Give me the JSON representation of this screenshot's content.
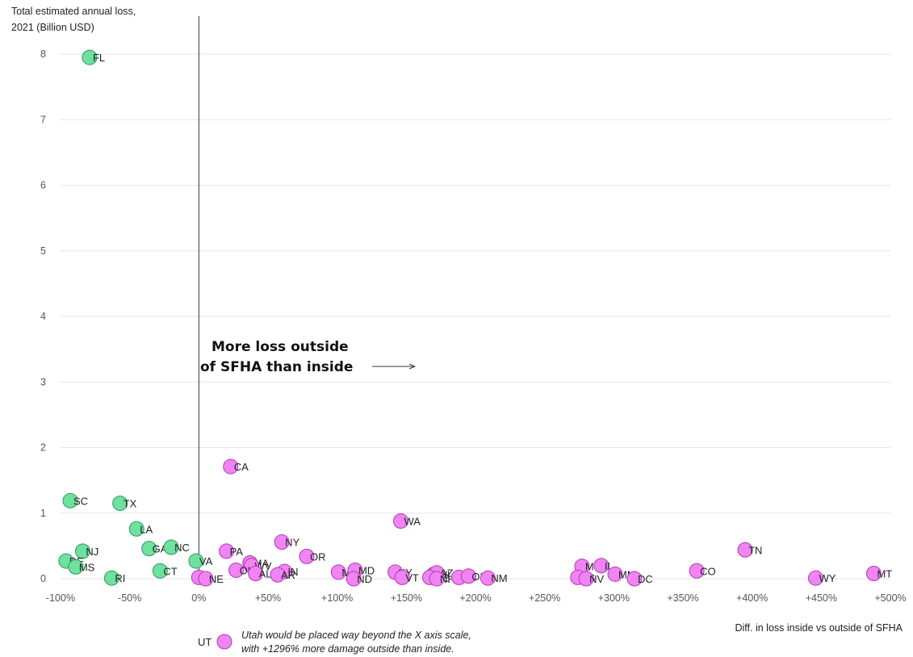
{
  "chart_data": {
    "type": "scatter",
    "title": "",
    "ylabel_lines": [
      "Total estimated annual loss,",
      "2021 (Billion USD)"
    ],
    "xlabel": "Diff. in loss inside vs outside of SFHA",
    "xlim": [
      -100,
      500
    ],
    "ylim": [
      0,
      8
    ],
    "x_ticks": [
      -100,
      -50,
      0,
      50,
      100,
      150,
      200,
      250,
      300,
      350,
      400,
      450,
      500
    ],
    "x_tick_labels": [
      "-100%",
      "-50%",
      "0%",
      "+50%",
      "+100%",
      "+150%",
      "+200%",
      "+250%",
      "+300%",
      "+350%",
      "+400%",
      "+450%",
      "+500%"
    ],
    "y_ticks": [
      0,
      1,
      2,
      3,
      4,
      5,
      6,
      7,
      8
    ],
    "y_tick_labels": [
      "0",
      "1",
      "2",
      "3",
      "4",
      "5",
      "6",
      "7",
      "8"
    ],
    "grid": true,
    "colors": {
      "negative": "#6ee0a0",
      "negative_stroke": "#2e9a5c",
      "positive": "#ef84f2",
      "positive_stroke": "#b03cb8"
    },
    "annotation_lines": [
      "More loss outside",
      "of SFHA than inside"
    ],
    "points": [
      {
        "label": "FL",
        "x": -79,
        "y": 7.95
      },
      {
        "label": "SC",
        "x": -93,
        "y": 1.19
      },
      {
        "label": "TX",
        "x": -57,
        "y": 1.15
      },
      {
        "label": "LA",
        "x": -45,
        "y": 0.76
      },
      {
        "label": "NJ",
        "x": -84,
        "y": 0.42
      },
      {
        "label": "DE",
        "x": -96,
        "y": 0.27
      },
      {
        "label": "MS",
        "x": -89,
        "y": 0.18
      },
      {
        "label": "RI",
        "x": -63,
        "y": 0.01
      },
      {
        "label": "GA",
        "x": -36,
        "y": 0.46
      },
      {
        "label": "NC",
        "x": -20,
        "y": 0.48
      },
      {
        "label": "CT",
        "x": -28,
        "y": 0.12
      },
      {
        "label": "VA",
        "x": -2,
        "y": 0.27
      },
      {
        "label": "IA",
        "x": 0,
        "y": 0.02
      },
      {
        "label": "NE",
        "x": 5,
        "y": 0.0
      },
      {
        "label": "CA",
        "x": 23,
        "y": 1.71
      },
      {
        "label": "PA",
        "x": 20,
        "y": 0.42
      },
      {
        "label": "MA",
        "x": 37,
        "y": 0.24
      },
      {
        "label": "WV",
        "x": 38,
        "y": 0.2
      },
      {
        "label": "OH",
        "x": 27,
        "y": 0.13
      },
      {
        "label": "AL",
        "x": 41,
        "y": 0.08
      },
      {
        "label": "NY",
        "x": 60,
        "y": 0.56
      },
      {
        "label": "OR",
        "x": 78,
        "y": 0.34
      },
      {
        "label": "IN",
        "x": 62,
        "y": 0.11
      },
      {
        "label": "AR",
        "x": 57,
        "y": 0.06
      },
      {
        "label": "MO",
        "x": 101,
        "y": 0.1
      },
      {
        "label": "MD",
        "x": 113,
        "y": 0.13
      },
      {
        "label": "ND",
        "x": 112,
        "y": 0.0
      },
      {
        "label": "KY",
        "x": 142,
        "y": 0.1
      },
      {
        "label": "VT",
        "x": 147,
        "y": 0.02
      },
      {
        "label": "WA",
        "x": 146,
        "y": 0.88
      },
      {
        "label": "WI",
        "x": 170,
        "y": 0.07
      },
      {
        "label": "AZ",
        "x": 172,
        "y": 0.09
      },
      {
        "label": "ME",
        "x": 167,
        "y": 0.02
      },
      {
        "label": "NH",
        "x": 172,
        "y": 0.0
      },
      {
        "label": "SD",
        "x": 188,
        "y": 0.02
      },
      {
        "label": "OK",
        "x": 195,
        "y": 0.04
      },
      {
        "label": "NM",
        "x": 209,
        "y": 0.01
      },
      {
        "label": "MI",
        "x": 277,
        "y": 0.19
      },
      {
        "label": "IL",
        "x": 291,
        "y": 0.2
      },
      {
        "label": "KS",
        "x": 274,
        "y": 0.02
      },
      {
        "label": "NV",
        "x": 280,
        "y": 0.0
      },
      {
        "label": "MN",
        "x": 301,
        "y": 0.07
      },
      {
        "label": "DC",
        "x": 315,
        "y": 0.0
      },
      {
        "label": "CO",
        "x": 360,
        "y": 0.12
      },
      {
        "label": "TN",
        "x": 395,
        "y": 0.44
      },
      {
        "label": "WY",
        "x": 446,
        "y": 0.01
      },
      {
        "label": "MT",
        "x": 488,
        "y": 0.08
      }
    ],
    "outlier_note": {
      "label": "UT",
      "lines": [
        "Utah would be placed way beyond the X axis scale,",
        "with +1296% more damage outside than inside."
      ]
    }
  }
}
